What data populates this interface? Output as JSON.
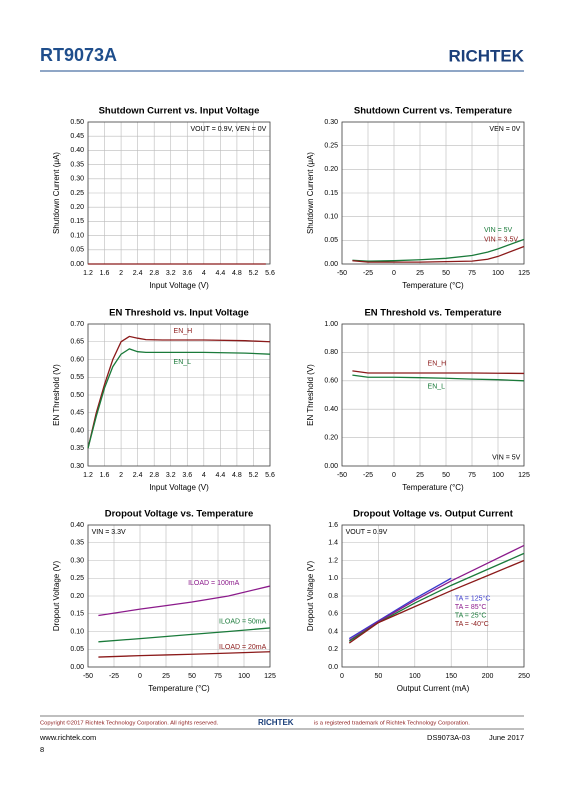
{
  "header": {
    "title": "RT9073A",
    "logo": "RICHTEK"
  },
  "chart_data": [
    {
      "type": "line",
      "title": "Shutdown Current vs. Input Voltage",
      "x_label": "Input Voltage (V)",
      "y_label": "Shutdown Current (μA)",
      "annotation": "VOUT = 0.9V, VEN = 0V",
      "grid": true,
      "x": [
        1.2,
        2,
        3,
        4,
        5,
        5.5
      ],
      "series": [
        {
          "color": "#8b1a1a",
          "values": [
            0,
            0,
            0,
            0,
            0,
            0
          ]
        }
      ],
      "xlim": [
        1.2,
        5.6
      ],
      "xticks": [
        1.2,
        1.6,
        2,
        2.4,
        2.8,
        3.2,
        3.6,
        4,
        4.4,
        4.8,
        5.2,
        5.6
      ],
      "ylim": [
        0,
        0.5
      ],
      "yticks": [
        {
          "value": 0,
          "label": "0.00"
        },
        0.05,
        {
          "value": 0.1,
          "label": "0.10"
        },
        0.15,
        {
          "value": 0.2,
          "label": "0.20"
        },
        0.25,
        {
          "value": 0.3,
          "label": "0.30"
        },
        0.35,
        {
          "value": 0.4,
          "label": "0.40"
        },
        0.45,
        {
          "value": 0.5,
          "label": "0.50"
        }
      ]
    },
    {
      "type": "line",
      "title": "Shutdown Current vs. Temperature",
      "x_label": "Temperature (°C)",
      "y_label": "Shutdown Current (μA)",
      "annotation": "VEN = 0V",
      "grid": true,
      "x": [
        -40,
        -25,
        0,
        25,
        50,
        75,
        90,
        100,
        125
      ],
      "series": [
        {
          "name": "VIN = 5V",
          "color": "#1a7a3a",
          "values": [
            0.008,
            0.006,
            0.007,
            0.009,
            0.012,
            0.018,
            0.025,
            0.032,
            0.052
          ]
        },
        {
          "name": "VIN = 3.5V",
          "color": "#8b1a1a",
          "values": [
            0.007,
            0.004,
            0.004,
            0.004,
            0.005,
            0.006,
            0.01,
            0.016,
            0.037
          ]
        }
      ],
      "xlim": [
        -50,
        125
      ],
      "xticks": [
        -50,
        -25,
        0,
        25,
        50,
        75,
        100,
        125
      ],
      "ylim": [
        0,
        0.3
      ],
      "yticks": [
        {
          "value": 0,
          "label": "0.00"
        },
        0.05,
        {
          "value": 0.1,
          "label": "0.10"
        },
        0.15,
        {
          "value": 0.2,
          "label": "0.20"
        },
        0.25,
        {
          "value": 0.3,
          "label": "0.30"
        }
      ]
    },
    {
      "type": "line",
      "title": "EN Threshold vs. Input Voltage",
      "x_label": "Input Voltage (V)",
      "y_label": "EN Threshold (V)",
      "grid": true,
      "x": [
        1.2,
        1.4,
        1.6,
        1.8,
        2,
        2.2,
        2.4,
        2.6,
        3,
        4,
        5,
        5.6
      ],
      "series": [
        {
          "name": "EN_H",
          "color": "#8b1a1a",
          "values": [
            0.35,
            0.45,
            0.53,
            0.6,
            0.65,
            0.665,
            0.66,
            0.656,
            0.655,
            0.655,
            0.653,
            0.65
          ]
        },
        {
          "name": "EN_L",
          "color": "#1a7a3a",
          "values": [
            0.35,
            0.44,
            0.52,
            0.58,
            0.615,
            0.63,
            0.622,
            0.62,
            0.62,
            0.62,
            0.618,
            0.615
          ]
        }
      ],
      "xlim": [
        1.2,
        5.6
      ],
      "xticks": [
        1.2,
        1.6,
        2,
        2.4,
        2.8,
        3.2,
        3.6,
        4,
        4.4,
        4.8,
        5.2,
        5.6
      ],
      "ylim": [
        0.3,
        0.7
      ],
      "yticks": [
        {
          "value": 0.3,
          "label": "0.30"
        },
        0.35,
        {
          "value": 0.4,
          "label": "0.40"
        },
        0.45,
        {
          "value": 0.5,
          "label": "0.50"
        },
        0.55,
        {
          "value": 0.6,
          "label": "0.60"
        },
        0.65,
        {
          "value": 0.7,
          "label": "0.70"
        }
      ]
    },
    {
      "type": "line",
      "title": "EN Threshold vs. Temperature",
      "x_label": "Temperature (°C)",
      "y_label": "EN Threshold (V)",
      "annotation": "VIN = 5V",
      "grid": true,
      "x": [
        -40,
        -25,
        0,
        25,
        50,
        75,
        100,
        125
      ],
      "series": [
        {
          "name": "EN_H",
          "color": "#8b1a1a",
          "values": [
            0.67,
            0.655,
            0.655,
            0.655,
            0.655,
            0.655,
            0.653,
            0.652
          ]
        },
        {
          "name": "EN_L",
          "color": "#1a7a3a",
          "values": [
            0.64,
            0.625,
            0.625,
            0.622,
            0.618,
            0.612,
            0.608,
            0.6
          ]
        }
      ],
      "xlim": [
        -50,
        125
      ],
      "xticks": [
        -50,
        -25,
        0,
        25,
        50,
        75,
        100,
        125
      ],
      "ylim": [
        0,
        1
      ],
      "yticks": [
        {
          "value": 0,
          "label": "0.00"
        },
        {
          "value": 0.2,
          "label": "0.20"
        },
        {
          "value": 0.4,
          "label": "0.40"
        },
        {
          "value": 0.6,
          "label": "0.60"
        },
        {
          "value": 0.8,
          "label": "0.80"
        },
        {
          "value": 1,
          "label": "1.00"
        }
      ]
    },
    {
      "type": "line",
      "title": "Dropout Voltage vs. Temperature",
      "x_label": "Temperature (°C)",
      "y_label": "Dropout Voltage (V)",
      "annotation": "VIN = 3.3V",
      "grid": true,
      "x": [
        -40,
        0,
        25,
        50,
        85,
        125
      ],
      "series": [
        {
          "name": "ILOAD = 100mA",
          "color": "#8b1a8b",
          "values": [
            0.145,
            0.163,
            0.173,
            0.183,
            0.2,
            0.228
          ]
        },
        {
          "name": "ILOAD = 50mA",
          "color": "#1a7a3a",
          "values": [
            0.071,
            0.08,
            0.086,
            0.092,
            0.1,
            0.11
          ]
        },
        {
          "name": "ILOAD = 20mA",
          "color": "#8b1a1a",
          "values": [
            0.028,
            0.032,
            0.034,
            0.036,
            0.039,
            0.043
          ]
        }
      ],
      "xlim": [
        -50,
        125
      ],
      "xticks": [
        -50,
        -25,
        0,
        25,
        50,
        75,
        100,
        125
      ],
      "ylim": [
        0,
        0.4
      ],
      "yticks": [
        {
          "value": 0,
          "label": "0.00"
        },
        0.05,
        {
          "value": 0.1,
          "label": "0.10"
        },
        0.15,
        {
          "value": 0.2,
          "label": "0.20"
        },
        0.25,
        {
          "value": 0.3,
          "label": "0.30"
        },
        0.35,
        {
          "value": 0.4,
          "label": "0.40"
        }
      ]
    },
    {
      "type": "line",
      "title": "Dropout Voltage vs. Output Current",
      "x_label": "Output Current (mA)",
      "y_label": "Dropout Voltage (V)",
      "annotation": "VOUT = 0.9V",
      "grid": true,
      "x": [
        10,
        50,
        100,
        150,
        200,
        250
      ],
      "series": [
        {
          "name": "TA = 125°C",
          "color": "#3a3acd",
          "values": [
            0.32,
            0.52,
            0.77,
            1.0,
            null,
            null
          ]
        },
        {
          "name": "TA = 85°C",
          "color": "#8b1a8b",
          "values": [
            0.3,
            0.51,
            0.75,
            0.97,
            1.17,
            1.37
          ]
        },
        {
          "name": "TA = 25°C",
          "color": "#1a7a3a",
          "values": [
            0.29,
            0.5,
            0.72,
            0.92,
            1.1,
            1.28
          ]
        },
        {
          "name": "TA = -40°C",
          "color": "#8b1a1a",
          "values": [
            0.27,
            0.5,
            0.68,
            0.86,
            1.03,
            1.2
          ]
        }
      ],
      "xlim": [
        0,
        250
      ],
      "xticks": [
        0,
        50,
        100,
        150,
        200,
        250
      ],
      "ylim": [
        0,
        1.6
      ],
      "yticks": [
        {
          "value": 0,
          "label": "0.0"
        },
        0.2,
        0.4,
        0.6,
        0.8,
        {
          "value": 1,
          "label": "1.0"
        },
        1.2,
        1.4,
        1.6
      ]
    }
  ],
  "footer": {
    "copyright": "Copyright ©2017 Richtek Technology Corporation. All rights reserved.",
    "logo": "RICHTEK",
    "trademark": "is a registered trademark of Richtek Technology Corporation.",
    "website": "www.richtek.com",
    "doc_id": "DS9073A-03",
    "date": "June  2017",
    "page": "8"
  }
}
